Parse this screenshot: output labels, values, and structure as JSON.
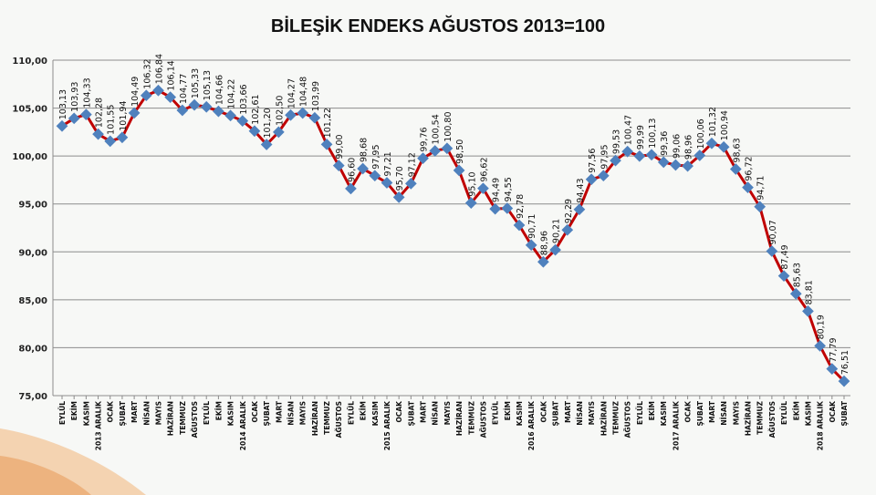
{
  "chart_data": {
    "type": "line",
    "title": "BİLEŞİK ENDEKS AĞUSTOS 2013=100",
    "xlabel": "",
    "ylabel": "",
    "ylim": [
      75,
      110
    ],
    "yticks": [
      "110,00",
      "105,00",
      "100,00",
      "95,00",
      "90,00",
      "85,00",
      "80,00",
      "75,00"
    ],
    "grid": true,
    "legend": "none",
    "line_color": "#c00000",
    "marker_color": "#4f81bd",
    "categories": [
      "EYLÜL",
      "EKİM",
      "KASIM",
      "2013 ARALIK",
      "OCAK",
      "ŞUBAT",
      "MART",
      "NİSAN",
      "MAYIS",
      "HAZİRAN",
      "TEMMUZ",
      "AĞUSTOS",
      "EYLÜL",
      "EKİM",
      "KASIM",
      "2014 ARALIK",
      "OCAK",
      "ŞUBAT",
      "MART",
      "NİSAN",
      "MAYIS",
      "HAZİRAN",
      "TEMMUZ",
      "AĞUSTOS",
      "EYLÜL",
      "EKİM",
      "KASIM",
      "2015 ARALIK",
      "OCAK",
      "ŞUBAT",
      "MART",
      "NİSAN",
      "MAYIS",
      "HAZİRAN",
      "TEMMUZ",
      "AĞUSTOS",
      "EYLÜL",
      "EKİM",
      "KASIM",
      "2016 ARALIK",
      "OCAK",
      "ŞUBAT",
      "MART",
      "NİSAN",
      "MAYIS",
      "HAZİRAN",
      "TEMMUZ",
      "AĞUSTOS",
      "EYLÜL",
      "EKİM",
      "KASIM",
      "2017 ARALIK",
      "OCAK",
      "ŞUBAT",
      "MART",
      "NİSAN",
      "MAYIS",
      "HAZİRAN",
      "TEMMUZ",
      "AĞUSTOS",
      "EYLÜL",
      "EKİM",
      "KASIM",
      "2018 ARALIK",
      "OCAK",
      "ŞUBAT"
    ],
    "values": [
      103.13,
      103.93,
      104.33,
      102.28,
      101.55,
      101.94,
      104.49,
      106.32,
      106.84,
      106.14,
      104.77,
      105.33,
      105.13,
      104.66,
      104.22,
      103.66,
      102.61,
      101.2,
      102.5,
      104.27,
      104.48,
      103.99,
      101.22,
      99.0,
      96.6,
      98.68,
      97.95,
      97.21,
      95.7,
      97.12,
      99.76,
      100.54,
      100.8,
      98.5,
      95.1,
      96.62,
      94.49,
      94.55,
      92.78,
      90.71,
      88.96,
      90.21,
      92.29,
      94.43,
      97.56,
      97.95,
      99.53,
      100.47,
      99.99,
      100.13,
      99.36,
      99.06,
      98.96,
      100.06,
      101.32,
      100.94,
      98.63,
      96.72,
      94.71,
      90.07,
      87.49,
      85.63,
      83.81,
      80.19,
      77.79,
      76.51
    ],
    "data_labels": [
      "103,13",
      "103,93",
      "104,33",
      "102,28",
      "101,55",
      "101,94",
      "104,49",
      "106,32",
      "106,84",
      "106,14",
      "104,77",
      "105,33",
      "105,13",
      "104,66",
      "104,22",
      "103,66",
      "102,61",
      "101,20",
      "102,50",
      "104,27",
      "104,48",
      "103,99",
      "101,22",
      "99,00",
      "96,60",
      "98,68",
      "97,95",
      "97,21",
      "95,70",
      "97,12",
      "99,76",
      "100,54",
      "100,80",
      "98,50",
      "95,10",
      "96,62",
      "94,49",
      "94,55",
      "92,78",
      "90,71",
      "88,96",
      "90,21",
      "92,29",
      "94,43",
      "97,56",
      "97,95",
      "99,53",
      "100,47",
      "99,99",
      "100,13",
      "99,36",
      "99,06",
      "98,96",
      "100,06",
      "101,32",
      "100,94",
      "98,63",
      "96,72",
      "94,71",
      "90,07",
      "87,49",
      "85,63",
      "83,81",
      "80,19",
      "77,79",
      "76,51"
    ]
  }
}
